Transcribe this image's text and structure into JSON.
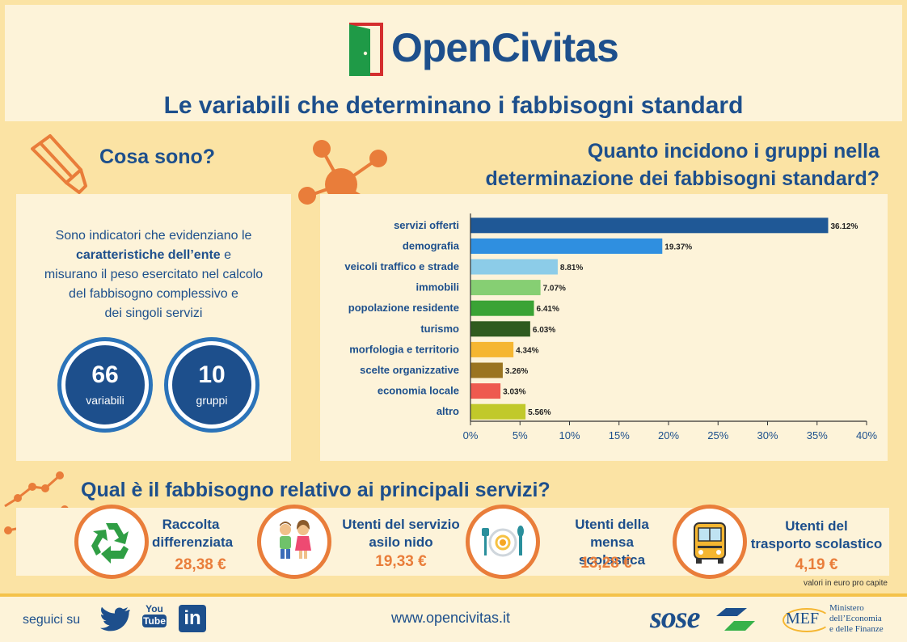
{
  "header": {
    "logo_text": "OpenCivitas",
    "title": "Le variabili che determinano i fabbisogni standard"
  },
  "left": {
    "title": "Cosa sono?",
    "text_1": "Sono indicatori che evidenziano le",
    "text_bold": "caratteristiche dell’ente",
    "text_2": " e",
    "text_3": "misurano il peso esercitato nel calcolo",
    "text_4": "del fabbisogno complessivo e",
    "text_5": "dei singoli servizi",
    "stat1": {
      "value": "66",
      "label": "variabili"
    },
    "stat2": {
      "value": "10",
      "label": "gruppi"
    }
  },
  "right": {
    "title_line1": "Quanto incidono i gruppi nella",
    "title_line2": "determinazione dei fabbisogni standard?"
  },
  "chart_data": {
    "type": "bar",
    "orientation": "horizontal",
    "categories": [
      "servizi offerti",
      "demografia",
      "veicoli traffico e strade",
      "immobili",
      "popolazione residente",
      "turismo",
      "morfologia e territorio",
      "scelte organizzative",
      "economia locale",
      "altro"
    ],
    "values": [
      36.12,
      19.37,
      8.81,
      7.07,
      6.41,
      6.03,
      4.34,
      3.26,
      3.03,
      5.56
    ],
    "value_labels": [
      "36.12%",
      "19.37%",
      "8.81%",
      "7.07%",
      "6.41%",
      "6.03%",
      "4.34%",
      "3.26%",
      "3.03%",
      "5.56%"
    ],
    "colors": [
      "#1f5896",
      "#2f8fe0",
      "#8ccce8",
      "#86cf73",
      "#3aa335",
      "#2f5b1f",
      "#f5b631",
      "#9a7420",
      "#ee5a4f",
      "#c1c92a"
    ],
    "xlim": [
      0,
      40
    ],
    "ticks": [
      "0%",
      "5%",
      "10%",
      "15%",
      "20%",
      "25%",
      "30%",
      "35%",
      "40%"
    ],
    "tick_values": [
      0,
      5,
      10,
      15,
      20,
      25,
      30,
      35,
      40
    ]
  },
  "services": {
    "title": "Qual è il fabbisogno relativo ai principali servizi?",
    "items": [
      {
        "label_1": "Raccolta",
        "label_2": "differenziata",
        "value": "28,38 €",
        "icon": "recycle-icon"
      },
      {
        "label_1": "Utenti del servizio",
        "label_2": "asilo nido",
        "value": "19,33 €",
        "icon": "children-icon"
      },
      {
        "label_1": "Utenti della",
        "label_2": "mensa scolastica",
        "value": "13,28 €",
        "icon": "plate-cutlery-icon"
      },
      {
        "label_1": "Utenti del",
        "label_2": "trasporto scolastico",
        "value": "4,19 €",
        "icon": "school-bus-icon"
      }
    ],
    "note": "valori in euro pro capite"
  },
  "footer": {
    "follow": "seguici su",
    "youtube_line1": "You",
    "youtube_line2": "Tube",
    "linkedin": "in",
    "url": "www.opencivitas.it",
    "sose": "sose",
    "mef": "MEF",
    "ministry_1": "Ministero",
    "ministry_2": "dell’Economia",
    "ministry_3": "e delle Finanze"
  },
  "colors": {
    "navy": "#1d4f8c",
    "orange": "#e97d3a",
    "background": "#fbe3a4",
    "panel": "#fdf3d9"
  }
}
